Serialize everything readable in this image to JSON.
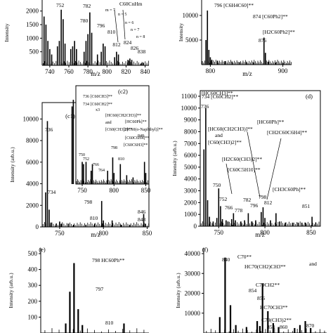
{
  "ylabels": {
    "intensity": "Intensity (arb.u.)",
    "intensity_short": "Intensity",
    "mz": "m/z"
  },
  "panel_labels": {
    "c1": "(c1)",
    "c2": "(c2)",
    "d": "(d)",
    "e": "(e)",
    "f": "(f)"
  },
  "chart_data": [
    {
      "id": "a",
      "type": "bar",
      "xlabel": "m/z",
      "ylabel": "Intensity",
      "xlim": [
        732,
        844
      ],
      "ylim": [
        0,
        2200
      ],
      "xticks": [
        740,
        760,
        780,
        800,
        820,
        840
      ],
      "yticks": [
        500,
        1000,
        1500,
        2000
      ],
      "annotations": [
        "752",
        "782",
        "780",
        "796",
        "810",
        "812",
        "824",
        "826",
        "838",
        "C60CnHm",
        "n = 5",
        "n = 6",
        "n = 7",
        "n = 8",
        "m = 7"
      ],
      "peaks": [
        [
          734,
          1800
        ],
        [
          736,
          1500
        ],
        [
          738,
          900
        ],
        [
          740,
          600
        ],
        [
          742,
          400
        ],
        [
          748,
          700
        ],
        [
          750,
          900
        ],
        [
          752,
          2050
        ],
        [
          754,
          1700
        ],
        [
          756,
          800
        ],
        [
          762,
          600
        ],
        [
          764,
          700
        ],
        [
          766,
          900
        ],
        [
          768,
          600
        ],
        [
          776,
          500
        ],
        [
          778,
          900
        ],
        [
          780,
          1150
        ],
        [
          782,
          1950
        ],
        [
          784,
          1200
        ],
        [
          790,
          400
        ],
        [
          794,
          500
        ],
        [
          796,
          800
        ],
        [
          798,
          700
        ],
        [
          808,
          300
        ],
        [
          810,
          500
        ],
        [
          812,
          400
        ],
        [
          822,
          200
        ],
        [
          824,
          250
        ],
        [
          826,
          200
        ],
        [
          836,
          80
        ],
        [
          838,
          100
        ]
      ]
    },
    {
      "id": "b",
      "type": "bar",
      "xlabel": "m/z",
      "ylabel": "Intensity",
      "xlim": [
        788,
        912
      ],
      "ylim": [
        0,
        12000
      ],
      "xticks": [
        800,
        900
      ],
      "yticks": [
        5000,
        10000
      ],
      "annotations": [
        "796 [C6H4C60]**",
        "874 [C60Ph2]**",
        "[H2C60Ph2]**",
        "876"
      ],
      "peaks": [
        [
          794,
          5000
        ],
        [
          796,
          11000
        ],
        [
          798,
          3000
        ],
        [
          800,
          1500
        ],
        [
          802,
          1000
        ],
        [
          810,
          800
        ],
        [
          820,
          700
        ],
        [
          830,
          600
        ],
        [
          840,
          500
        ],
        [
          850,
          500
        ],
        [
          860,
          400
        ],
        [
          874,
          5500
        ],
        [
          876,
          2400
        ],
        [
          880,
          600
        ],
        [
          890,
          400
        ],
        [
          900,
          300
        ]
      ]
    },
    {
      "id": "c1",
      "type": "bar",
      "xlabel": "m/z",
      "ylabel": "Intensity (arb.u.)",
      "xlim": [
        730,
        852
      ],
      "ylim": [
        0,
        11000
      ],
      "xticks": [
        750,
        800,
        850
      ],
      "yticks": [
        0,
        2000,
        4000,
        6000,
        8000,
        10000
      ],
      "annotations": [
        "736",
        "734",
        "798",
        "810",
        "846",
        "848"
      ],
      "peaks": [
        [
          734,
          3200
        ],
        [
          736,
          9800
        ],
        [
          738,
          1600
        ],
        [
          740,
          400
        ],
        [
          746,
          300
        ],
        [
          750,
          500
        ],
        [
          752,
          300
        ],
        [
          760,
          300
        ],
        [
          766,
          200
        ],
        [
          780,
          200
        ],
        [
          790,
          300
        ],
        [
          798,
          2400
        ],
        [
          800,
          600
        ],
        [
          810,
          600
        ],
        [
          820,
          200
        ],
        [
          830,
          200
        ],
        [
          846,
          1200
        ],
        [
          848,
          300
        ]
      ]
    },
    {
      "id": "c2",
      "type": "bar",
      "inset": true,
      "xlim": [
        740,
        855
      ],
      "xticks": [
        750,
        800,
        850
      ],
      "annotations": [
        "736 [C60CH3]**",
        "734 [C60CH2]**",
        "[HC60(CH2CH3)]**",
        "[HC60Ph]**",
        "[HC60(o-Naphthyl)]**",
        "848",
        "798",
        "810",
        "766",
        "752",
        "750",
        "764",
        "and",
        "[C60(CH3)2]**",
        "[C60C6H4]**",
        "[C60C6H3]**",
        "x3"
      ],
      "peaks": [
        [
          736,
          1900
        ],
        [
          734,
          1750
        ],
        [
          750,
          500
        ],
        [
          752,
          450
        ],
        [
          756,
          500
        ],
        [
          764,
          300
        ],
        [
          766,
          450
        ],
        [
          790,
          300
        ],
        [
          798,
          600
        ],
        [
          800,
          250
        ],
        [
          810,
          450
        ],
        [
          820,
          200
        ],
        [
          830,
          150
        ],
        [
          848,
          500
        ],
        [
          850,
          250
        ]
      ]
    },
    {
      "id": "d",
      "type": "bar",
      "xlabel": "m/z",
      "ylabel": "Intensity (arb.u.)",
      "xlim": [
        730,
        860
      ],
      "ylim": [
        0,
        11000
      ],
      "xticks": [
        750,
        800,
        850
      ],
      "yticks": [
        0,
        1000,
        2000,
        3000,
        4000,
        5000,
        6000,
        7000,
        8000,
        9000,
        10000,
        11000
      ],
      "annotations": [
        "736",
        "734 [C60CH2]**",
        "[HC60CH3]**",
        "[HC60Ph]**",
        "[CH2C60C6H4]**",
        "[HC60(CH2CH3)]**",
        "and",
        "[C60(CH3)2]**",
        "[H2C60(CH3)2]**",
        "[C60C5H10]**",
        "750",
        "752",
        "766",
        "778",
        "782",
        "796",
        "798",
        "812",
        "[CH3C60Ph]**",
        "851"
      ],
      "peaks": [
        [
          734,
          6500
        ],
        [
          736,
          10000
        ],
        [
          738,
          2200
        ],
        [
          740,
          800
        ],
        [
          744,
          400
        ],
        [
          748,
          700
        ],
        [
          750,
          3200
        ],
        [
          752,
          1700
        ],
        [
          754,
          600
        ],
        [
          758,
          500
        ],
        [
          760,
          400
        ],
        [
          764,
          600
        ],
        [
          766,
          1100
        ],
        [
          768,
          500
        ],
        [
          774,
          400
        ],
        [
          778,
          500
        ],
        [
          782,
          1100
        ],
        [
          786,
          400
        ],
        [
          790,
          500
        ],
        [
          796,
          1200
        ],
        [
          798,
          1600
        ],
        [
          800,
          700
        ],
        [
          806,
          500
        ],
        [
          812,
          1100
        ],
        [
          816,
          400
        ],
        [
          822,
          300
        ],
        [
          830,
          300
        ],
        [
          836,
          300
        ],
        [
          840,
          300
        ],
        [
          844,
          300
        ],
        [
          851,
          800
        ],
        [
          855,
          300
        ]
      ]
    },
    {
      "id": "e",
      "type": "bar",
      "ylabel": "Intensity (arb.u.)",
      "yticks": [
        100,
        200,
        300,
        400,
        500
      ],
      "ylim": [
        0,
        500
      ],
      "annotations": [
        "798 HC60Ph**",
        "797",
        "810"
      ],
      "peaks": [
        [
          796,
          60
        ],
        [
          797,
          260
        ],
        [
          798,
          440
        ],
        [
          799,
          150
        ],
        [
          800,
          50
        ],
        [
          810,
          60
        ]
      ]
    },
    {
      "id": "f",
      "type": "bar",
      "ylabel": "Intensity (arb.u.)",
      "yticks": [
        10000,
        20000,
        30000,
        40000
      ],
      "ylim": [
        0,
        40000
      ],
      "annotations": [
        "840",
        "C70**",
        "HC70(CH2)CH3**",
        "and",
        "854",
        "C70CH2**",
        "856",
        "HC70CH3**",
        "C70(CH3)2**",
        "870",
        "853",
        "860"
      ],
      "peaks": [
        [
          838,
          8000
        ],
        [
          840,
          38000
        ],
        [
          842,
          14000
        ],
        [
          844,
          4000
        ],
        [
          848,
          3000
        ],
        [
          852,
          6000
        ],
        [
          853,
          3500
        ],
        [
          854,
          25000
        ],
        [
          856,
          11000
        ],
        [
          858,
          5000
        ],
        [
          860,
          3000
        ],
        [
          866,
          2500
        ],
        [
          868,
          4000
        ],
        [
          870,
          6000
        ],
        [
          872,
          2500
        ]
      ]
    }
  ]
}
